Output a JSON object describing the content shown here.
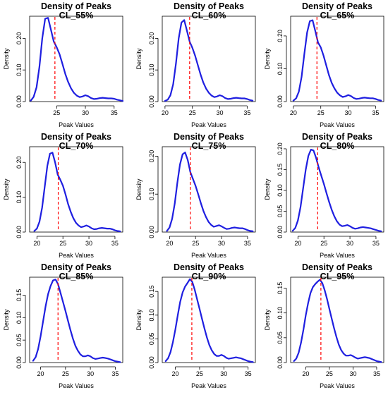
{
  "figure": {
    "background": "#ffffff"
  },
  "style": {
    "curve_color": "#1f1fe0",
    "marker_color": "#ff0000",
    "axis_color": "#000000"
  },
  "chart_data": [
    {
      "type": "line",
      "title": "Density of Peaks",
      "subtitle": "CL_55%",
      "xlabel": "Peak Values",
      "ylabel": "Density",
      "xlim": [
        20.3,
        36.5
      ],
      "xticks": [
        25,
        30,
        35
      ],
      "ylim": [
        0,
        0.27
      ],
      "yticks": [
        0.0,
        0.1,
        0.2
      ],
      "threshold_line": 24.7,
      "series": [
        {
          "x": [
            20.5,
            21,
            21.5,
            22,
            22.5,
            23,
            23.5,
            24,
            24.5,
            25,
            25.5,
            26,
            26.5,
            27,
            27.5,
            28,
            28.5,
            29,
            29.5,
            30,
            30.5,
            31,
            31.5,
            32,
            32.5,
            33,
            33.5,
            34,
            34.5,
            35,
            35.5,
            36,
            36.5
          ],
          "values": [
            0.003,
            0.015,
            0.045,
            0.11,
            0.2,
            0.262,
            0.265,
            0.228,
            0.19,
            0.172,
            0.15,
            0.12,
            0.088,
            0.062,
            0.042,
            0.028,
            0.019,
            0.014,
            0.016,
            0.02,
            0.017,
            0.011,
            0.008,
            0.009,
            0.011,
            0.012,
            0.011,
            0.01,
            0.01,
            0.009,
            0.006,
            0.004,
            0.002
          ]
        }
      ]
    },
    {
      "type": "line",
      "title": "Density of Peaks",
      "subtitle": "CL_60%",
      "xlabel": "Peak Values",
      "ylabel": "Density",
      "xlim": [
        19.5,
        36.5
      ],
      "xticks": [
        20,
        25,
        30,
        35
      ],
      "ylim": [
        0,
        0.27
      ],
      "yticks": [
        0.0,
        0.1,
        0.2
      ],
      "threshold_line": 24.5,
      "series": [
        {
          "x": [
            20,
            20.5,
            21,
            21.5,
            22,
            22.5,
            23,
            23.5,
            24,
            24.5,
            25,
            25.5,
            26,
            26.5,
            27,
            27.5,
            28,
            28.5,
            29,
            29.5,
            30,
            30.5,
            31,
            31.5,
            32,
            32.5,
            33,
            33.5,
            34,
            34.5,
            35,
            35.5,
            36
          ],
          "values": [
            0.002,
            0.006,
            0.02,
            0.055,
            0.12,
            0.2,
            0.25,
            0.258,
            0.225,
            0.19,
            0.17,
            0.145,
            0.115,
            0.085,
            0.06,
            0.041,
            0.028,
            0.019,
            0.014,
            0.016,
            0.02,
            0.017,
            0.011,
            0.008,
            0.009,
            0.011,
            0.012,
            0.011,
            0.01,
            0.01,
            0.008,
            0.005,
            0.003
          ]
        }
      ]
    },
    {
      "type": "line",
      "title": "Density of Peaks",
      "subtitle": "CL_65%",
      "xlabel": "Peak Values",
      "ylabel": "Density",
      "xlim": [
        19.5,
        36.5
      ],
      "xticks": [
        20,
        25,
        30,
        35
      ],
      "ylim": [
        0,
        0.26
      ],
      "yticks": [
        0.0,
        0.1,
        0.2
      ],
      "threshold_line": 24.3,
      "series": [
        {
          "x": [
            20,
            20.5,
            21,
            21.5,
            22,
            22.5,
            23,
            23.5,
            24,
            24.5,
            25,
            25.5,
            26,
            26.5,
            27,
            27.5,
            28,
            28.5,
            29,
            29.5,
            30,
            30.5,
            31,
            31.5,
            32,
            32.5,
            33,
            33.5,
            34,
            34.5,
            35,
            35.5,
            36
          ],
          "values": [
            0.003,
            0.01,
            0.03,
            0.075,
            0.145,
            0.21,
            0.245,
            0.248,
            0.215,
            0.18,
            0.165,
            0.14,
            0.11,
            0.08,
            0.057,
            0.04,
            0.027,
            0.019,
            0.014,
            0.016,
            0.02,
            0.017,
            0.011,
            0.008,
            0.009,
            0.011,
            0.012,
            0.011,
            0.01,
            0.01,
            0.008,
            0.005,
            0.003
          ]
        }
      ]
    },
    {
      "type": "line",
      "title": "Density of Peaks",
      "subtitle": "CL_70%",
      "xlabel": "Peak Values",
      "ylabel": "Density",
      "xlim": [
        18.6,
        36.5
      ],
      "xticks": [
        20,
        25,
        30,
        35
      ],
      "ylim": [
        0,
        0.245
      ],
      "yticks": [
        0.0,
        0.1,
        0.2
      ],
      "threshold_line": 24.1,
      "series": [
        {
          "x": [
            19.5,
            20,
            20.5,
            21,
            21.5,
            22,
            22.5,
            23,
            23.5,
            24,
            24.5,
            25,
            25.5,
            26,
            26.5,
            27,
            27.5,
            28,
            28.5,
            29,
            29.5,
            30,
            30.5,
            31,
            31.5,
            32,
            32.5,
            33,
            33.5,
            34,
            34.5,
            35,
            35.5,
            36
          ],
          "values": [
            0.003,
            0.01,
            0.03,
            0.07,
            0.13,
            0.19,
            0.225,
            0.228,
            0.2,
            0.165,
            0.15,
            0.133,
            0.108,
            0.08,
            0.058,
            0.04,
            0.027,
            0.019,
            0.014,
            0.016,
            0.019,
            0.016,
            0.011,
            0.008,
            0.009,
            0.011,
            0.012,
            0.011,
            0.01,
            0.01,
            0.008,
            0.005,
            0.003,
            0.002
          ]
        }
      ]
    },
    {
      "type": "line",
      "title": "Density of Peaks",
      "subtitle": "CL_75%",
      "xlabel": "Peak Values",
      "ylabel": "Density",
      "xlim": [
        18.6,
        36.5
      ],
      "xticks": [
        20,
        25,
        30,
        35
      ],
      "ylim": [
        0,
        0.225
      ],
      "yticks": [
        0.0,
        0.1,
        0.2
      ],
      "threshold_line": 24.0,
      "series": [
        {
          "x": [
            19.5,
            20,
            20.5,
            21,
            21.5,
            22,
            22.5,
            23,
            23.5,
            24,
            24.5,
            25,
            25.5,
            26,
            26.5,
            27,
            27.5,
            28,
            28.5,
            29,
            29.5,
            30,
            30.5,
            31,
            31.5,
            32,
            32.5,
            33,
            33.5,
            34,
            34.5,
            35,
            35.5,
            36
          ],
          "values": [
            0.003,
            0.012,
            0.035,
            0.075,
            0.13,
            0.178,
            0.205,
            0.21,
            0.19,
            0.158,
            0.14,
            0.122,
            0.1,
            0.077,
            0.056,
            0.04,
            0.027,
            0.019,
            0.014,
            0.016,
            0.018,
            0.015,
            0.011,
            0.008,
            0.009,
            0.011,
            0.012,
            0.011,
            0.01,
            0.01,
            0.008,
            0.005,
            0.003,
            0.002
          ]
        }
      ]
    },
    {
      "type": "line",
      "title": "Density of Peaks",
      "subtitle": "CL_80%",
      "xlabel": "Peak Values",
      "ylabel": "Density",
      "xlim": [
        18.6,
        36.5
      ],
      "xticks": [
        20,
        25,
        30,
        35
      ],
      "ylim": [
        0,
        0.205
      ],
      "yticks": [
        0.0,
        0.05,
        0.1,
        0.15,
        0.2
      ],
      "threshold_line": 23.8,
      "series": [
        {
          "x": [
            19,
            19.5,
            20,
            20.5,
            21,
            21.5,
            22,
            22.5,
            23,
            23.5,
            24,
            24.5,
            25,
            25.5,
            26,
            26.5,
            27,
            27.5,
            28,
            28.5,
            29,
            29.5,
            30,
            30.5,
            31,
            31.5,
            32,
            32.5,
            33,
            33.5,
            34,
            34.5,
            35,
            35.5,
            36
          ],
          "values": [
            0.003,
            0.01,
            0.028,
            0.06,
            0.105,
            0.15,
            0.183,
            0.198,
            0.196,
            0.178,
            0.155,
            0.135,
            0.115,
            0.093,
            0.072,
            0.053,
            0.038,
            0.026,
            0.018,
            0.014,
            0.015,
            0.017,
            0.014,
            0.01,
            0.008,
            0.009,
            0.011,
            0.012,
            0.011,
            0.01,
            0.009,
            0.007,
            0.005,
            0.003,
            0.002
          ]
        }
      ]
    },
    {
      "type": "line",
      "title": "Density of Peaks",
      "subtitle": "CL_85%",
      "xlabel": "Peak Values",
      "ylabel": "Density",
      "xlim": [
        17.8,
        36.5
      ],
      "xticks": [
        20,
        25,
        30,
        35
      ],
      "ylim": [
        0,
        0.19
      ],
      "yticks": [
        0.0,
        0.05,
        0.1,
        0.15
      ],
      "threshold_line": 23.5,
      "series": [
        {
          "x": [
            18.5,
            19,
            19.5,
            20,
            20.5,
            21,
            21.5,
            22,
            22.5,
            23,
            23.5,
            24,
            24.5,
            25,
            25.5,
            26,
            26.5,
            27,
            27.5,
            28,
            28.5,
            29,
            29.5,
            30,
            30.5,
            31,
            31.5,
            32,
            32.5,
            33,
            33.5,
            34,
            34.5,
            35,
            35.5,
            36
          ],
          "values": [
            0.004,
            0.012,
            0.03,
            0.058,
            0.092,
            0.125,
            0.152,
            0.17,
            0.183,
            0.185,
            0.175,
            0.155,
            0.135,
            0.115,
            0.093,
            0.072,
            0.053,
            0.037,
            0.026,
            0.018,
            0.014,
            0.014,
            0.016,
            0.014,
            0.01,
            0.008,
            0.009,
            0.01,
            0.011,
            0.01,
            0.009,
            0.007,
            0.005,
            0.003,
            0.002,
            0.001
          ]
        }
      ]
    },
    {
      "type": "line",
      "title": "Density of Peaks",
      "subtitle": "CL_90%",
      "xlabel": "Peak Values",
      "ylabel": "Density",
      "xlim": [
        17.3,
        36.5
      ],
      "xticks": [
        20,
        25,
        30,
        35
      ],
      "ylim": [
        0,
        0.18
      ],
      "yticks": [
        0.0,
        0.05,
        0.1,
        0.15
      ],
      "threshold_line": 23.4,
      "series": [
        {
          "x": [
            18,
            18.5,
            19,
            19.5,
            20,
            20.5,
            21,
            21.5,
            22,
            22.5,
            23,
            23.5,
            24,
            24.5,
            25,
            25.5,
            26,
            26.5,
            27,
            27.5,
            28,
            28.5,
            29,
            29.5,
            30,
            30.5,
            31,
            31.5,
            32,
            32.5,
            33,
            33.5,
            34,
            34.5,
            35,
            35.5,
            36
          ],
          "values": [
            0.003,
            0.009,
            0.022,
            0.043,
            0.07,
            0.1,
            0.128,
            0.148,
            0.16,
            0.168,
            0.176,
            0.17,
            0.153,
            0.133,
            0.113,
            0.092,
            0.072,
            0.053,
            0.037,
            0.026,
            0.018,
            0.014,
            0.014,
            0.016,
            0.014,
            0.01,
            0.008,
            0.009,
            0.01,
            0.011,
            0.01,
            0.009,
            0.007,
            0.005,
            0.003,
            0.002,
            0.001
          ]
        }
      ]
    },
    {
      "type": "line",
      "title": "Density of Peaks",
      "subtitle": "CL_95%",
      "xlabel": "Peak Values",
      "ylabel": "Density",
      "xlim": [
        16.8,
        36.5
      ],
      "xticks": [
        20,
        25,
        30,
        35
      ],
      "ylim": [
        0,
        0.172
      ],
      "yticks": [
        0.0,
        0.05,
        0.1,
        0.15
      ],
      "threshold_line": 23.2,
      "series": [
        {
          "x": [
            17.5,
            18,
            18.5,
            19,
            19.5,
            20,
            20.5,
            21,
            21.5,
            22,
            22.5,
            23,
            23.5,
            24,
            24.5,
            25,
            25.5,
            26,
            26.5,
            27,
            27.5,
            28,
            28.5,
            29,
            29.5,
            30,
            30.5,
            31,
            31.5,
            32,
            32.5,
            33,
            33.5,
            34,
            34.5,
            35,
            35.5,
            36
          ],
          "values": [
            0.003,
            0.008,
            0.02,
            0.04,
            0.066,
            0.095,
            0.12,
            0.14,
            0.152,
            0.158,
            0.163,
            0.167,
            0.16,
            0.146,
            0.128,
            0.108,
            0.088,
            0.069,
            0.051,
            0.036,
            0.025,
            0.018,
            0.014,
            0.014,
            0.015,
            0.013,
            0.01,
            0.008,
            0.009,
            0.01,
            0.011,
            0.01,
            0.009,
            0.007,
            0.005,
            0.003,
            0.002,
            0.001
          ]
        }
      ]
    }
  ]
}
